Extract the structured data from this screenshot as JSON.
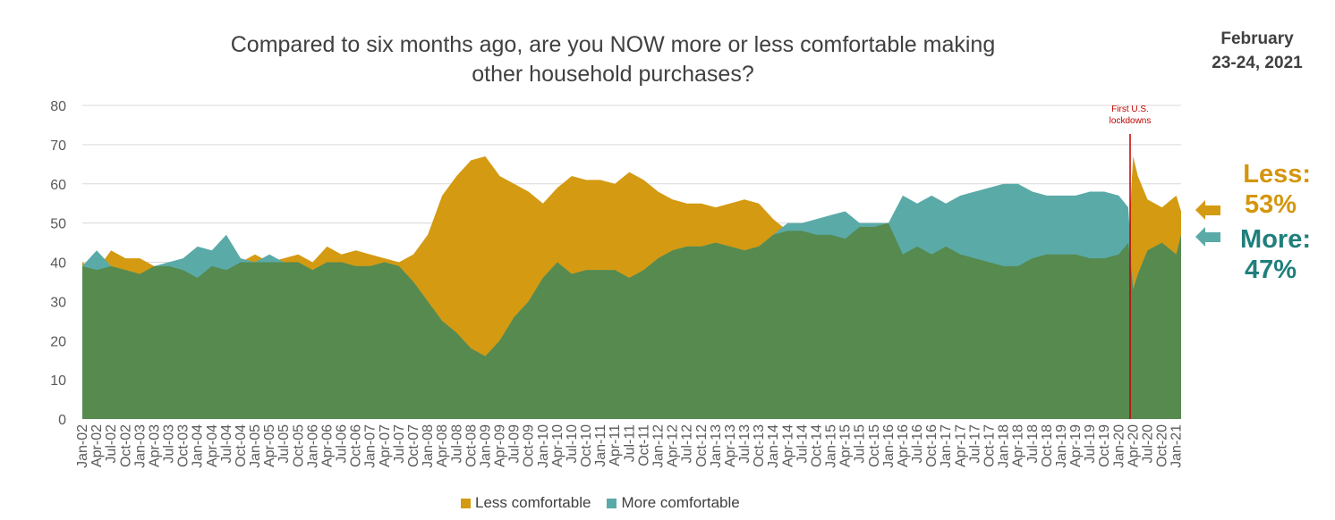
{
  "header": {
    "title_line1": "Compared to six months ago, are you NOW more or less comfortable making",
    "title_line2": "other household purchases?",
    "date_line1": "February",
    "date_line2": "23-24, 2021"
  },
  "callouts": {
    "less_label": "Less:",
    "less_value": "53%",
    "more_label": "More:",
    "more_value": "47%"
  },
  "colors": {
    "less": "#D49A12",
    "more": "#5AAAA8",
    "base": "#568A4F",
    "less_text": "#D4960E",
    "more_text": "#1F7F7B",
    "annotation": "#C00000"
  },
  "chart_data": {
    "type": "area",
    "title": "Compared to six months ago, are you NOW more or less comfortable making other household purchases?",
    "ylim": [
      0,
      80
    ],
    "yticks": [
      0,
      10,
      20,
      30,
      40,
      50,
      60,
      70,
      80
    ],
    "grid": true,
    "legend_position": "bottom",
    "x_tick_labels": [
      "Jan-02",
      "Apr-02",
      "Jul-02",
      "Oct-02",
      "Jan-03",
      "Apr-03",
      "Jul-03",
      "Oct-03",
      "Jan-04",
      "Apr-04",
      "Jul-04",
      "Oct-04",
      "Jan-05",
      "Apr-05",
      "Jul-05",
      "Oct-05",
      "Jan-06",
      "Apr-06",
      "Jul-06",
      "Oct-06",
      "Jan-07",
      "Apr-07",
      "Jul-07",
      "Oct-07",
      "Jan-08",
      "Apr-08",
      "Jul-08",
      "Oct-08",
      "Jan-09",
      "Apr-09",
      "Jul-09",
      "Oct-09",
      "Jan-10",
      "Apr-10",
      "Jul-10",
      "Oct-10",
      "Jan-11",
      "Apr-11",
      "Jul-11",
      "Oct-11",
      "Jan-12",
      "Apr-12",
      "Jul-12",
      "Oct-12",
      "Jan-13",
      "Apr-13",
      "Jul-13",
      "Oct-13",
      "Jan-14",
      "Apr-14",
      "Jul-14",
      "Oct-14",
      "Jan-15",
      "Apr-15",
      "Jul-15",
      "Oct-15",
      "Jan-16",
      "Apr-16",
      "Jul-16",
      "Oct-16",
      "Jan-17",
      "Apr-17",
      "Jul-17",
      "Oct-17",
      "Jan-18",
      "Apr-18",
      "Jul-18",
      "Oct-18",
      "Jan-19",
      "Apr-19",
      "Jul-19",
      "Oct-19",
      "Jan-20",
      "Apr-20",
      "Jul-20",
      "Oct-20",
      "Jan-21"
    ],
    "legend": [
      "Less comfortable",
      "More comfortable"
    ],
    "annotation": {
      "lines": [
        "First U.S.",
        "lockdowns"
      ],
      "x": "Mar-20"
    },
    "series": [
      {
        "name": "Less comfortable",
        "x": [
          "Jan-02",
          "Apr-02",
          "Jul-02",
          "Oct-02",
          "Jan-03",
          "Apr-03",
          "Jul-03",
          "Oct-03",
          "Jan-04",
          "Apr-04",
          "Jul-04",
          "Oct-04",
          "Jan-05",
          "Apr-05",
          "Jul-05",
          "Oct-05",
          "Jan-06",
          "Apr-06",
          "Jul-06",
          "Oct-06",
          "Jan-07",
          "Apr-07",
          "Jul-07",
          "Oct-07",
          "Jan-08",
          "Apr-08",
          "Jul-08",
          "Oct-08",
          "Jan-09",
          "Apr-09",
          "Jul-09",
          "Oct-09",
          "Jan-10",
          "Apr-10",
          "Jul-10",
          "Oct-10",
          "Jan-11",
          "Apr-11",
          "Jul-11",
          "Oct-11",
          "Jan-12",
          "Apr-12",
          "Jul-12",
          "Oct-12",
          "Jan-13",
          "Apr-13",
          "Jul-13",
          "Oct-13",
          "Jan-14",
          "Apr-14",
          "Jul-14",
          "Oct-14",
          "Jan-15",
          "Apr-15",
          "Jul-15",
          "Oct-15",
          "Jan-16",
          "Apr-16",
          "Jul-16",
          "Oct-16",
          "Jan-17",
          "Apr-17",
          "Jul-17",
          "Oct-17",
          "Jan-18",
          "Apr-18",
          "Jul-18",
          "Oct-18",
          "Jan-19",
          "Apr-19",
          "Jul-19",
          "Oct-19",
          "Jan-20",
          "Mar-20",
          "Apr-20",
          "May-20",
          "Jul-20",
          "Oct-20",
          "Jan-21",
          "Feb-21"
        ],
        "values": [
          40,
          38,
          43,
          41,
          41,
          39,
          39,
          38,
          36,
          39,
          38,
          40,
          42,
          40,
          41,
          42,
          40,
          44,
          42,
          43,
          42,
          41,
          40,
          42,
          47,
          57,
          62,
          66,
          67,
          62,
          60,
          58,
          55,
          59,
          62,
          61,
          61,
          60,
          63,
          61,
          58,
          56,
          55,
          55,
          54,
          55,
          56,
          55,
          51,
          48,
          48,
          47,
          47,
          46,
          49,
          49,
          50,
          42,
          44,
          42,
          44,
          42,
          41,
          40,
          39,
          39,
          41,
          42,
          42,
          42,
          41,
          41,
          42,
          45,
          67,
          62,
          56,
          54,
          57,
          53
        ]
      },
      {
        "name": "More comfortable",
        "x": [
          "Jan-02",
          "Apr-02",
          "Jul-02",
          "Oct-02",
          "Jan-03",
          "Apr-03",
          "Jul-03",
          "Oct-03",
          "Jan-04",
          "Apr-04",
          "Jul-04",
          "Oct-04",
          "Jan-05",
          "Apr-05",
          "Jul-05",
          "Oct-05",
          "Jan-06",
          "Apr-06",
          "Jul-06",
          "Oct-06",
          "Jan-07",
          "Apr-07",
          "Jul-07",
          "Oct-07",
          "Jan-08",
          "Apr-08",
          "Jul-08",
          "Oct-08",
          "Jan-09",
          "Apr-09",
          "Jul-09",
          "Oct-09",
          "Jan-10",
          "Apr-10",
          "Jul-10",
          "Oct-10",
          "Jan-11",
          "Apr-11",
          "Jul-11",
          "Oct-11",
          "Jan-12",
          "Apr-12",
          "Jul-12",
          "Oct-12",
          "Jan-13",
          "Apr-13",
          "Jul-13",
          "Oct-13",
          "Jan-14",
          "Apr-14",
          "Jul-14",
          "Oct-14",
          "Jan-15",
          "Apr-15",
          "Jul-15",
          "Oct-15",
          "Jan-16",
          "Apr-16",
          "Jul-16",
          "Oct-16",
          "Jan-17",
          "Apr-17",
          "Jul-17",
          "Oct-17",
          "Jan-18",
          "Apr-18",
          "Jul-18",
          "Oct-18",
          "Jan-19",
          "Apr-19",
          "Jul-19",
          "Oct-19",
          "Jan-20",
          "Mar-20",
          "Apr-20",
          "May-20",
          "Jul-20",
          "Oct-20",
          "Jan-21",
          "Feb-21"
        ],
        "values": [
          39,
          43,
          39,
          38,
          37,
          39,
          40,
          41,
          44,
          43,
          47,
          41,
          40,
          42,
          40,
          40,
          38,
          40,
          40,
          39,
          39,
          40,
          39,
          35,
          30,
          25,
          22,
          18,
          16,
          20,
          26,
          30,
          36,
          40,
          37,
          38,
          38,
          38,
          36,
          38,
          41,
          43,
          44,
          44,
          45,
          44,
          43,
          44,
          47,
          50,
          50,
          51,
          52,
          53,
          50,
          50,
          50,
          57,
          55,
          57,
          55,
          57,
          58,
          59,
          60,
          60,
          58,
          57,
          57,
          57,
          58,
          58,
          57,
          54,
          33,
          37,
          43,
          45,
          42,
          47
        ]
      }
    ]
  }
}
